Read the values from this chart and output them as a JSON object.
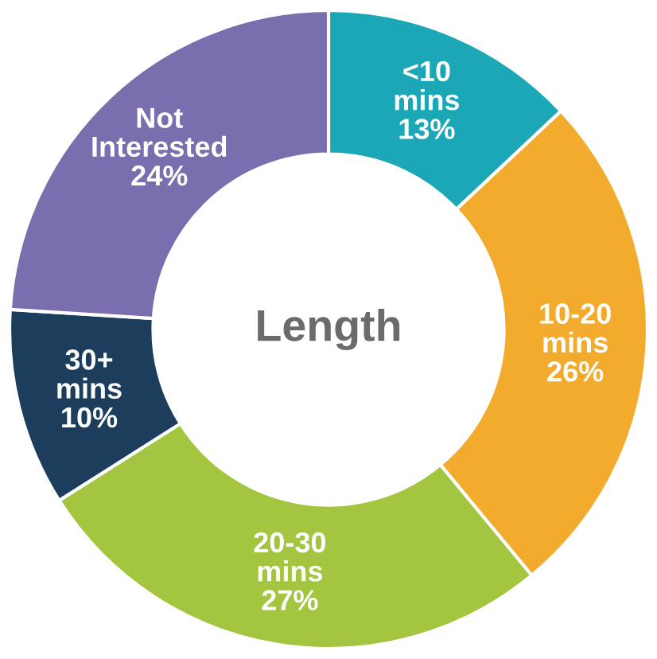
{
  "chart_data": {
    "type": "donut",
    "title": "Length",
    "categories": [
      "<10\nmins",
      "10-20\nmins",
      "20-30\nmins",
      "30+\nmins",
      "Not\nInterested"
    ],
    "values": [
      13,
      26,
      27,
      10,
      24
    ],
    "colors": [
      "#1ba7b5",
      "#f2ab2c",
      "#a3c540",
      "#1d3d5c",
      "#7a6eae"
    ],
    "value_labels": [
      "13%",
      "26%",
      "27%",
      "10%",
      "24%"
    ]
  }
}
